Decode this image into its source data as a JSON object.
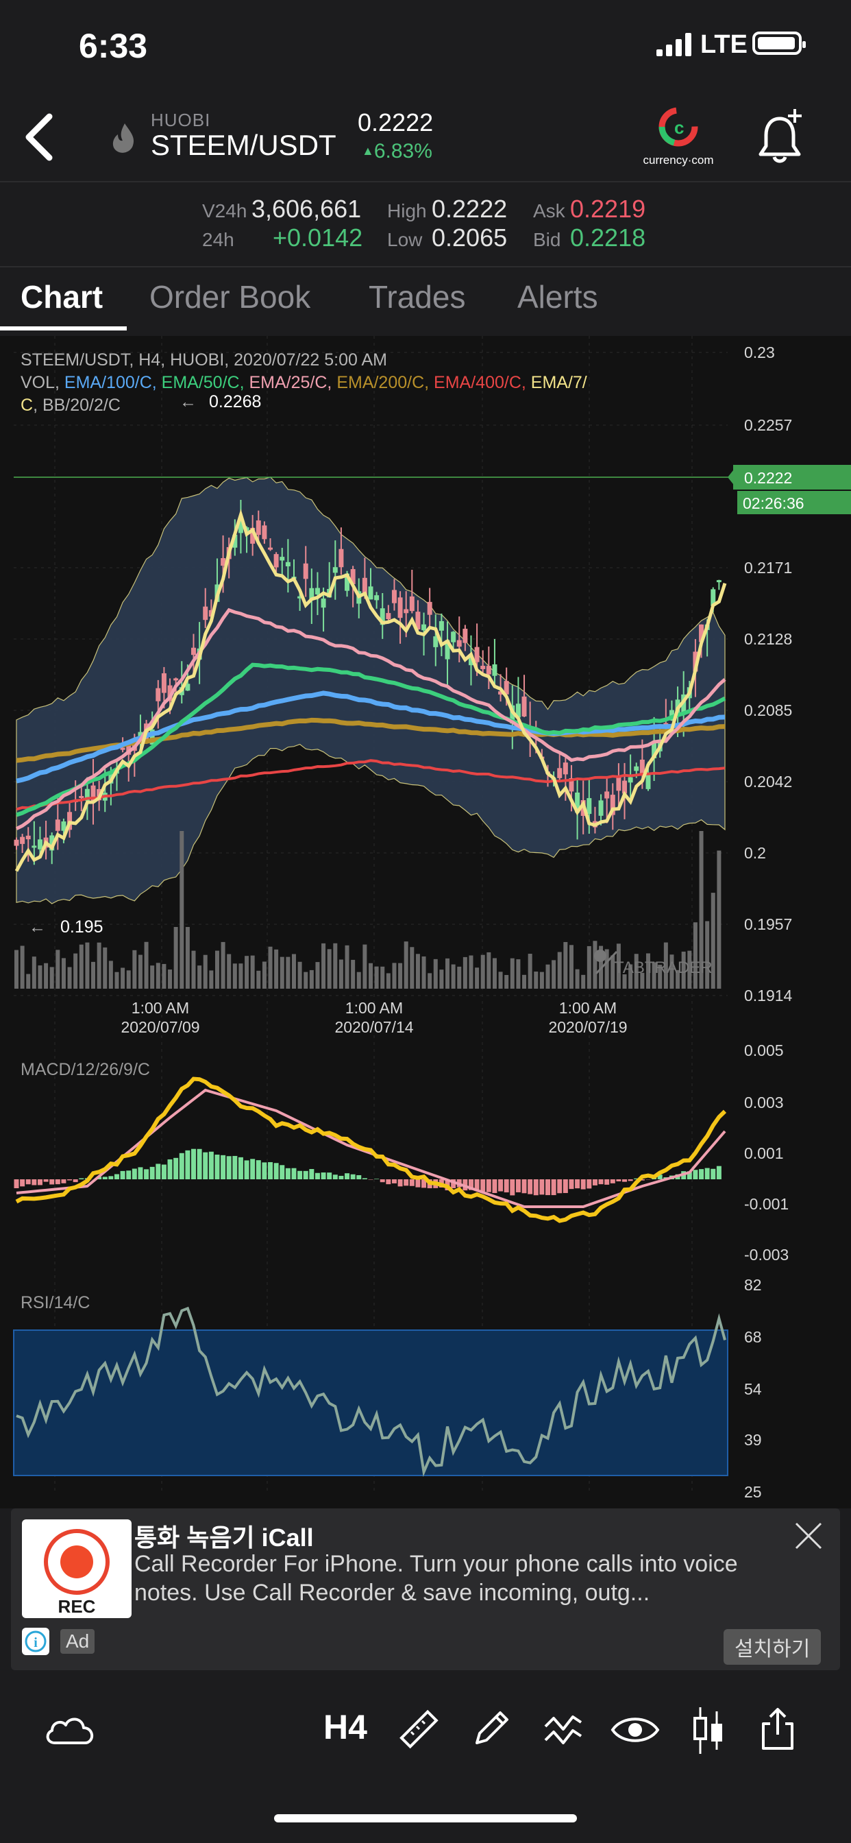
{
  "status_bar": {
    "time": "6:33",
    "network": "LTE"
  },
  "header": {
    "exchange": "HUOBI",
    "pair": "STEEM/USDT",
    "price": "0.2222",
    "change": "6.83%",
    "logo_text": "currency·com"
  },
  "stats": {
    "v24h_label": "V24h",
    "v24h": "3,606,661",
    "d24h_label": "24h",
    "d24h": "+0.0142",
    "high_label": "High",
    "high": "0.2222",
    "low_label": "Low",
    "low": "0.2065",
    "ask_label": "Ask",
    "ask": "0.2219",
    "bid_label": "Bid",
    "bid": "0.2218"
  },
  "tabs": [
    "Chart",
    "Order Book",
    "Trades",
    "Alerts"
  ],
  "chart": {
    "info_line1": "STEEM/USDT, H4, HUOBI, 2020/07/22 5:00 AM",
    "vol": "VOL,",
    "indicators": [
      {
        "label": "EMA/100/C,",
        "color": "#5aa9f5"
      },
      {
        "label": "EMA/50/C,",
        "color": "#3ccf7d"
      },
      {
        "label": "EMA/25/C,",
        "color": "#f0a0b0"
      },
      {
        "label": "EMA/200/C,",
        "color": "#b8902a"
      },
      {
        "label": "EMA/400/C,",
        "color": "#e84545"
      },
      {
        "label": "EMA/7/",
        "color": "#f2e38a"
      }
    ],
    "info_line3_c": "C",
    "info_line3_bb": ", BB/20/2/C",
    "max_marker": "0.2268",
    "min_marker": "0.195",
    "last_price": "0.2222",
    "countdown": "02:26:36",
    "watermark": "TABTRADER",
    "price_axis": [
      "0.23",
      "0.2257",
      "0.2171",
      "0.2128",
      "0.2085",
      "0.2042",
      "0.2",
      "0.1957",
      "0.1914"
    ],
    "time_axis": [
      {
        "time": "1:00 AM",
        "date": "2020/07/09"
      },
      {
        "time": "1:00 AM",
        "date": "2020/07/14"
      },
      {
        "time": "1:00 AM",
        "date": "2020/07/19"
      }
    ],
    "macd_label": "MACD/12/26/9/C",
    "macd_axis": [
      "0.005",
      "0.003",
      "0.001",
      "-0.001",
      "-0.003"
    ],
    "rsi_label": "RSI/14/C",
    "rsi_axis": [
      "82",
      "68",
      "54",
      "39",
      "25"
    ],
    "colors": {
      "up": "#7ddf9a",
      "down": "#e88a92",
      "ema7": "#f2e38a",
      "macd": "#f5c518",
      "signal": "#f0a0b0",
      "rsi": "#8ca89a",
      "rsi_band": "#0e3157"
    }
  },
  "ad": {
    "icon_text": "REC",
    "title": "통화 녹음기 iCall",
    "description": "Call Recorder For iPhone. Turn your phone calls into voice notes. Use Call Recorder & save incoming, outg...",
    "badge": "Ad",
    "install": "설치하기"
  },
  "toolbar": {
    "timeframe": "H4"
  }
}
